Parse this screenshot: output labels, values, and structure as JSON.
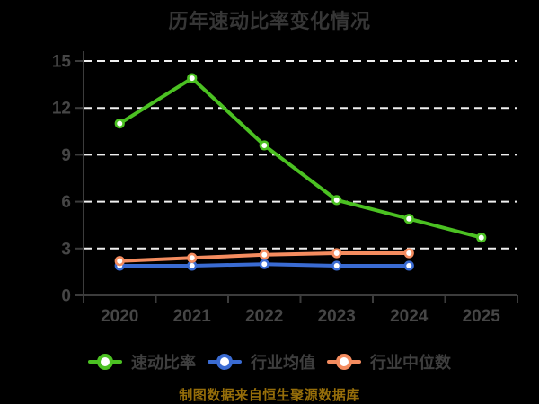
{
  "page": {
    "background": "#000000"
  },
  "chart_data": {
    "type": "line",
    "title": "历年速动比率变化情况",
    "title_color": "#363636",
    "categories": [
      "2020",
      "2021",
      "2022",
      "2023",
      "2024",
      "2025"
    ],
    "series": [
      {
        "name": "速动比率",
        "color": "#4bc122",
        "values": [
          11.0,
          13.9,
          9.6,
          6.1,
          4.9,
          3.7
        ]
      },
      {
        "name": "行业均值",
        "color": "#3a6bd2",
        "values": [
          1.9,
          1.9,
          2.0,
          1.9,
          1.9
        ]
      },
      {
        "name": "行业中位数",
        "color": "#f48c5f",
        "values": [
          2.2,
          2.4,
          2.6,
          2.7,
          2.7
        ]
      }
    ],
    "xlabel": "",
    "ylabel": "",
    "ylim": [
      0,
      15
    ],
    "yticks": [
      0,
      3,
      6,
      9,
      12,
      15
    ],
    "grid": "horizontal-dashed",
    "gridline_color": "#f0f0f0",
    "axis_color": "#3c3c3c",
    "tick_label_color": "#464646",
    "marker_style": "circle-white-fill",
    "legend_position": "bottom",
    "legend_label_color": "#3e3e3e"
  },
  "footer": {
    "text": "制图数据来自恒生聚源数据库",
    "color": "#966e0a"
  }
}
